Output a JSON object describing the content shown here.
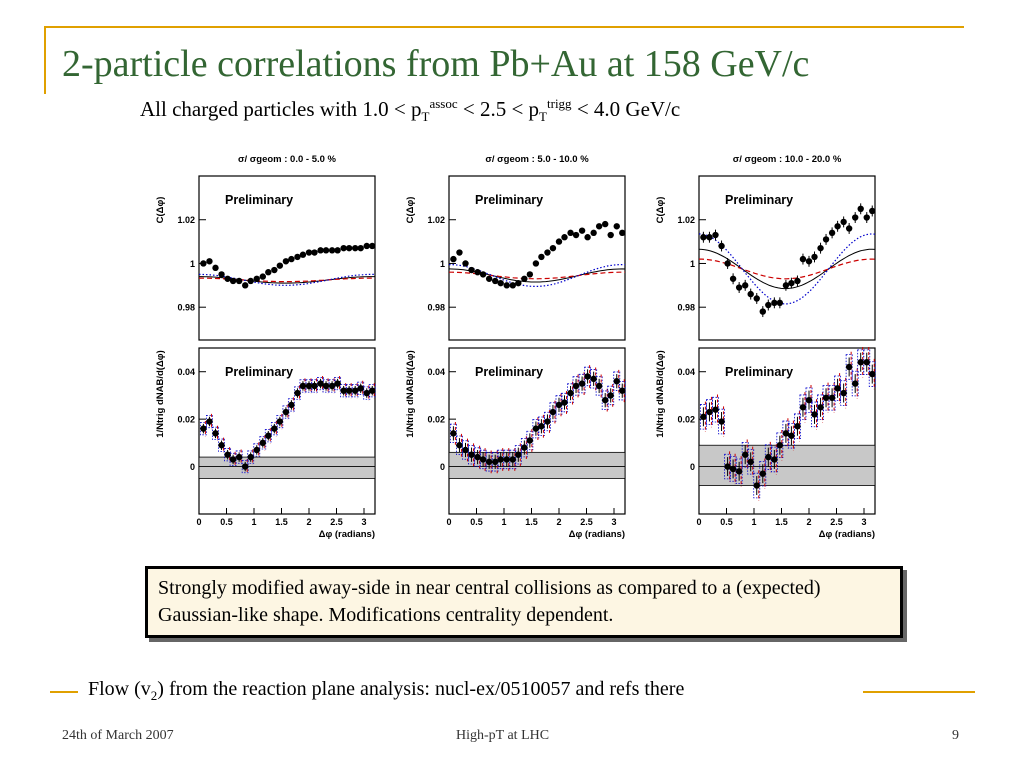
{
  "slide": {
    "title": "2-particle correlations from Pb+Au at 158 GeV/c",
    "subtitle": {
      "p1": "All charged particles with 1.0 < p",
      "sub1": "T",
      "sup1": "assoc",
      "p2": " < 2.5 < p",
      "sub2": "T",
      "sup2": "trigg",
      "p3": " < 4.0 GeV/c"
    },
    "callout": "Strongly modified away-side in near central collisions as compared to a (expected) Gaussian-like shape. Modifications centrality dependent.",
    "footnote": {
      "p1": "Flow (v",
      "sub": "2",
      "p2": ") from the reaction plane analysis: nucl-ex/0510057 and refs there"
    },
    "footer": {
      "date": "24th of March 2007",
      "center": "High-pT at LHC",
      "page": "9"
    }
  },
  "colors": {
    "accent": "#e0a000",
    "title": "#336633",
    "flow_solid": "#000000",
    "flow_dashed": "#cc0000",
    "flow_dotted": "#0000cc",
    "band": "#c8c8c8"
  },
  "chart_data": [
    {
      "type": "scatter",
      "panel": "C-top",
      "centrality": "σ/ σgeom : 0.0 - 5.0 %",
      "annotation": "Preliminary",
      "ylabel": "C(Δφ)",
      "ylim": [
        0.965,
        1.04
      ],
      "xlim": [
        0,
        3.2
      ],
      "yticks": [
        0.98,
        1,
        1.02
      ],
      "ytick_labels": [
        "0.98",
        "1",
        "1.02"
      ],
      "x": [
        0.08,
        0.19,
        0.3,
        0.41,
        0.52,
        0.62,
        0.73,
        0.84,
        0.94,
        1.05,
        1.16,
        1.26,
        1.37,
        1.47,
        1.58,
        1.68,
        1.79,
        1.89,
        2.0,
        2.1,
        2.21,
        2.31,
        2.42,
        2.52,
        2.63,
        2.73,
        2.84,
        2.94,
        3.05,
        3.15
      ],
      "y": [
        1.0,
        1.001,
        0.998,
        0.995,
        0.993,
        0.992,
        0.992,
        0.99,
        0.992,
        0.993,
        0.994,
        0.996,
        0.997,
        0.999,
        1.001,
        1.002,
        1.003,
        1.004,
        1.005,
        1.005,
        1.006,
        1.006,
        1.006,
        1.006,
        1.007,
        1.007,
        1.007,
        1.007,
        1.008,
        1.008
      ],
      "yerr": [
        0.001,
        0.001,
        0.001,
        0.001,
        0.001,
        0.001,
        0.001,
        0.001,
        0.001,
        0.001,
        0.001,
        0.001,
        0.001,
        0.001,
        0.001,
        0.001,
        0.001,
        0.001,
        0.001,
        0.001,
        0.001,
        0.001,
        0.001,
        0.001,
        0.001,
        0.001,
        0.001,
        0.001,
        0.001,
        0.001
      ],
      "flow": {
        "base": 0.9925,
        "solid_amp": 0.0015,
        "dashed_amp": 0.0008,
        "dotted_amp": 0.0025
      }
    },
    {
      "type": "scatter",
      "panel": "C-top",
      "centrality": "σ/ σgeom : 5.0 - 10.0 %",
      "annotation": "Preliminary",
      "ylabel": "C(Δφ)",
      "ylim": [
        0.965,
        1.04
      ],
      "xlim": [
        0,
        3.2
      ],
      "yticks": [
        0.98,
        1,
        1.02
      ],
      "ytick_labels": [
        "0.98",
        "1",
        "1.02"
      ],
      "x": [
        0.08,
        0.19,
        0.3,
        0.41,
        0.52,
        0.62,
        0.73,
        0.84,
        0.94,
        1.05,
        1.16,
        1.26,
        1.37,
        1.47,
        1.58,
        1.68,
        1.79,
        1.89,
        2.0,
        2.1,
        2.21,
        2.31,
        2.42,
        2.52,
        2.63,
        2.73,
        2.84,
        2.94,
        3.05,
        3.15
      ],
      "y": [
        1.002,
        1.005,
        1.0,
        0.997,
        0.996,
        0.995,
        0.993,
        0.992,
        0.991,
        0.99,
        0.99,
        0.991,
        0.993,
        0.995,
        1.0,
        1.003,
        1.005,
        1.007,
        1.01,
        1.012,
        1.014,
        1.013,
        1.015,
        1.012,
        1.014,
        1.017,
        1.018,
        1.013,
        1.017,
        1.014
      ],
      "yerr": [
        0.0012,
        0.0012,
        0.0012,
        0.0012,
        0.0012,
        0.0012,
        0.0012,
        0.0012,
        0.0012,
        0.0012,
        0.0012,
        0.0012,
        0.0012,
        0.0012,
        0.0012,
        0.0012,
        0.0012,
        0.0012,
        0.0012,
        0.0012,
        0.0012,
        0.0012,
        0.0012,
        0.0012,
        0.0012,
        0.0012,
        0.0012,
        0.0012,
        0.0012,
        0.0012
      ],
      "flow": {
        "base": 0.9945,
        "solid_amp": 0.003,
        "dashed_amp": 0.0015,
        "dotted_amp": 0.005
      }
    },
    {
      "type": "scatter",
      "panel": "C-top",
      "centrality": "σ/ σgeom : 10.0 - 20.0 %",
      "annotation": "Preliminary",
      "ylabel": "C(Δφ)",
      "ylim": [
        0.965,
        1.04
      ],
      "xlim": [
        0,
        3.2
      ],
      "yticks": [
        0.98,
        1,
        1.02
      ],
      "ytick_labels": [
        "0.98",
        "1",
        "1.02"
      ],
      "x": [
        0.08,
        0.19,
        0.3,
        0.41,
        0.52,
        0.62,
        0.73,
        0.84,
        0.94,
        1.05,
        1.16,
        1.26,
        1.37,
        1.47,
        1.58,
        1.68,
        1.79,
        1.89,
        2.0,
        2.1,
        2.21,
        2.31,
        2.42,
        2.52,
        2.63,
        2.73,
        2.84,
        2.94,
        3.05,
        3.15
      ],
      "y": [
        1.012,
        1.012,
        1.013,
        1.008,
        1.0,
        0.993,
        0.989,
        0.99,
        0.986,
        0.984,
        0.978,
        0.981,
        0.982,
        0.982,
        0.99,
        0.991,
        0.992,
        1.002,
        1.001,
        1.003,
        1.007,
        1.011,
        1.014,
        1.017,
        1.019,
        1.016,
        1.021,
        1.025,
        1.021,
        1.024
      ],
      "yerr": [
        0.0025,
        0.0025,
        0.0025,
        0.0025,
        0.0025,
        0.0025,
        0.0025,
        0.0025,
        0.0025,
        0.0025,
        0.0025,
        0.0025,
        0.0025,
        0.0025,
        0.0025,
        0.0025,
        0.0025,
        0.0025,
        0.0025,
        0.0025,
        0.0025,
        0.0025,
        0.0025,
        0.0025,
        0.0025,
        0.0025,
        0.0025,
        0.0025,
        0.0025,
        0.0025
      ],
      "flow": {
        "base": 0.9975,
        "solid_amp": 0.009,
        "dashed_amp": 0.0045,
        "dotted_amp": 0.016
      }
    },
    {
      "type": "scatter",
      "panel": "dN-bottom",
      "annotation": "Preliminary",
      "ylabel": "1/Ntrig dNAB/d(Δφ)",
      "xlabel": "Δφ (radians)",
      "ylim": [
        -0.02,
        0.05
      ],
      "xlim": [
        0,
        3.2
      ],
      "yticks": [
        0,
        0.02,
        0.04
      ],
      "ytick_labels": [
        "0",
        "0.02",
        "0.04"
      ],
      "xticks": [
        0,
        0.5,
        1,
        1.5,
        2,
        2.5,
        3
      ],
      "xtick_labels": [
        "0",
        "0.5",
        "1",
        "1.5",
        "2",
        "2.5",
        "3"
      ],
      "band": [
        -0.005,
        0.004
      ],
      "x": [
        0.08,
        0.19,
        0.3,
        0.41,
        0.52,
        0.62,
        0.73,
        0.84,
        0.94,
        1.05,
        1.16,
        1.26,
        1.37,
        1.47,
        1.58,
        1.68,
        1.79,
        1.89,
        2.0,
        2.1,
        2.21,
        2.31,
        2.42,
        2.52,
        2.63,
        2.73,
        2.84,
        2.94,
        3.05,
        3.15
      ],
      "y": [
        0.016,
        0.019,
        0.014,
        0.009,
        0.005,
        0.003,
        0.004,
        0.0,
        0.004,
        0.007,
        0.01,
        0.013,
        0.016,
        0.019,
        0.023,
        0.026,
        0.031,
        0.034,
        0.034,
        0.034,
        0.035,
        0.034,
        0.034,
        0.035,
        0.032,
        0.032,
        0.032,
        0.033,
        0.031,
        0.032
      ],
      "yerr": [
        0.002,
        0.002,
        0.002,
        0.002,
        0.002,
        0.002,
        0.002,
        0.002,
        0.002,
        0.002,
        0.002,
        0.002,
        0.002,
        0.002,
        0.002,
        0.002,
        0.002,
        0.002,
        0.002,
        0.002,
        0.002,
        0.002,
        0.002,
        0.002,
        0.002,
        0.002,
        0.002,
        0.002,
        0.002,
        0.002
      ],
      "syst": 0.002
    },
    {
      "type": "scatter",
      "panel": "dN-bottom",
      "annotation": "Preliminary",
      "ylabel": "1/Ntrig dNAB/d(Δφ)",
      "xlabel": "Δφ (radians)",
      "ylim": [
        -0.02,
        0.05
      ],
      "xlim": [
        0,
        3.2
      ],
      "yticks": [
        0,
        0.02,
        0.04
      ],
      "ytick_labels": [
        "0",
        "0.02",
        "0.04"
      ],
      "xticks": [
        0,
        0.5,
        1,
        1.5,
        2,
        2.5,
        3
      ],
      "xtick_labels": [
        "0",
        "0.5",
        "1",
        "1.5",
        "2",
        "2.5",
        "3"
      ],
      "band": [
        -0.005,
        0.006
      ],
      "x": [
        0.08,
        0.19,
        0.3,
        0.41,
        0.52,
        0.62,
        0.73,
        0.84,
        0.94,
        1.05,
        1.16,
        1.26,
        1.37,
        1.47,
        1.58,
        1.68,
        1.79,
        1.89,
        2.0,
        2.1,
        2.21,
        2.31,
        2.42,
        2.52,
        2.63,
        2.73,
        2.84,
        2.94,
        3.05,
        3.15
      ],
      "y": [
        0.014,
        0.009,
        0.007,
        0.005,
        0.004,
        0.003,
        0.002,
        0.002,
        0.003,
        0.003,
        0.003,
        0.005,
        0.008,
        0.011,
        0.016,
        0.017,
        0.019,
        0.023,
        0.026,
        0.027,
        0.031,
        0.034,
        0.035,
        0.038,
        0.037,
        0.034,
        0.028,
        0.03,
        0.036,
        0.032
      ],
      "yerr": [
        0.003,
        0.003,
        0.003,
        0.003,
        0.003,
        0.003,
        0.003,
        0.003,
        0.003,
        0.003,
        0.003,
        0.003,
        0.003,
        0.003,
        0.003,
        0.003,
        0.003,
        0.003,
        0.003,
        0.003,
        0.003,
        0.003,
        0.003,
        0.003,
        0.003,
        0.003,
        0.003,
        0.003,
        0.003,
        0.003
      ],
      "syst": 0.003
    },
    {
      "type": "scatter",
      "panel": "dN-bottom",
      "annotation": "Preliminary",
      "ylabel": "1/Ntrig dNAB/d(Δφ)",
      "xlabel": "Δφ (radians)",
      "ylim": [
        -0.02,
        0.05
      ],
      "xlim": [
        0,
        3.2
      ],
      "yticks": [
        0,
        0.02,
        0.04
      ],
      "ytick_labels": [
        "0",
        "0.02",
        "0.04"
      ],
      "xticks": [
        0,
        0.5,
        1,
        1.5,
        2,
        2.5,
        3
      ],
      "xtick_labels": [
        "0",
        "0.5",
        "1",
        "1.5",
        "2",
        "2.5",
        "3"
      ],
      "band": [
        -0.008,
        0.009
      ],
      "x": [
        0.08,
        0.19,
        0.3,
        0.41,
        0.52,
        0.62,
        0.73,
        0.84,
        0.94,
        1.05,
        1.16,
        1.26,
        1.37,
        1.47,
        1.58,
        1.68,
        1.79,
        1.89,
        2.0,
        2.1,
        2.21,
        2.31,
        2.42,
        2.52,
        2.63,
        2.73,
        2.84,
        2.94,
        3.05,
        3.15
      ],
      "y": [
        0.021,
        0.023,
        0.024,
        0.019,
        0.0,
        -0.001,
        -0.002,
        0.005,
        0.002,
        -0.008,
        -0.003,
        0.004,
        0.003,
        0.009,
        0.014,
        0.013,
        0.017,
        0.025,
        0.028,
        0.022,
        0.025,
        0.029,
        0.029,
        0.033,
        0.031,
        0.042,
        0.035,
        0.044,
        0.044,
        0.039
      ],
      "yerr": [
        0.004,
        0.004,
        0.004,
        0.004,
        0.004,
        0.004,
        0.004,
        0.004,
        0.004,
        0.004,
        0.004,
        0.004,
        0.004,
        0.004,
        0.004,
        0.004,
        0.004,
        0.004,
        0.004,
        0.004,
        0.004,
        0.004,
        0.004,
        0.004,
        0.004,
        0.004,
        0.004,
        0.004,
        0.004,
        0.004
      ],
      "syst": 0.004
    }
  ]
}
